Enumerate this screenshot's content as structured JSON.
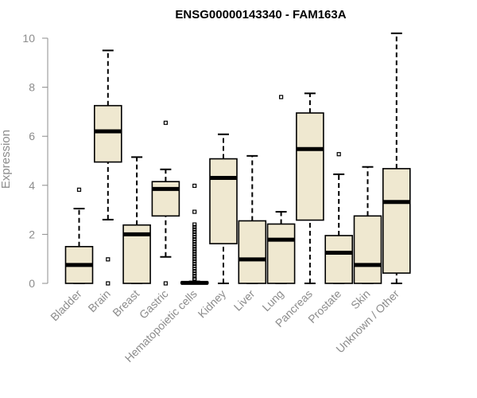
{
  "chart_data": {
    "type": "box",
    "title": "ENSG00000143340 - FAM163A",
    "ylabel": "Expression",
    "xlabel": "",
    "ylim": [
      0,
      10.5
    ],
    "yticks": [
      0,
      2,
      4,
      6,
      8,
      10
    ],
    "box_fill": "#efe8d0",
    "categories": [
      "Bladder",
      "Brain",
      "Breast",
      "Gastric",
      "Hematopoietic cells",
      "Kidney",
      "Liver",
      "Lung",
      "Pancreas",
      "Prostate",
      "Skin",
      "Unknown / Other"
    ],
    "boxes": [
      {
        "whisker_low": 0.0,
        "q1": 0.0,
        "median": 0.75,
        "q3": 1.5,
        "whisker_high": 3.05,
        "outliers": [
          3.82
        ]
      },
      {
        "whisker_low": 2.6,
        "q1": 4.95,
        "median": 6.2,
        "q3": 7.25,
        "whisker_high": 9.5,
        "outliers": [
          0.0,
          0.98
        ]
      },
      {
        "whisker_low": 0.0,
        "q1": 0.0,
        "median": 2.0,
        "q3": 2.38,
        "whisker_high": 5.15,
        "outliers": []
      },
      {
        "whisker_low": 1.08,
        "q1": 2.75,
        "median": 3.85,
        "q3": 4.15,
        "whisker_high": 4.65,
        "outliers": [
          6.55,
          0.0
        ]
      },
      {
        "whisker_low": 0.0,
        "q1": 0.0,
        "median": 0.02,
        "q3": 0.05,
        "whisker_high": 0.08,
        "outliers": [
          3.98,
          2.92,
          2.4,
          2.3,
          2.2,
          2.1,
          2.0,
          1.9,
          1.8,
          1.7,
          1.6,
          1.5,
          1.4,
          1.3,
          1.2,
          1.1,
          1.0,
          0.9,
          0.8,
          0.7,
          0.6,
          0.5,
          0.4,
          0.3,
          0.2,
          0.15
        ]
      },
      {
        "whisker_low": 0.0,
        "q1": 1.62,
        "median": 4.3,
        "q3": 5.08,
        "whisker_high": 6.08,
        "outliers": []
      },
      {
        "whisker_low": 0.0,
        "q1": 0.0,
        "median": 0.98,
        "q3": 2.55,
        "whisker_high": 5.2,
        "outliers": []
      },
      {
        "whisker_low": 0.0,
        "q1": 0.0,
        "median": 1.78,
        "q3": 2.42,
        "whisker_high": 2.92,
        "outliers": [
          7.6
        ]
      },
      {
        "whisker_low": 0.0,
        "q1": 2.58,
        "median": 5.48,
        "q3": 6.95,
        "whisker_high": 7.75,
        "outliers": []
      },
      {
        "whisker_low": 0.0,
        "q1": 0.0,
        "median": 1.25,
        "q3": 1.95,
        "whisker_high": 4.45,
        "outliers": [
          5.27
        ]
      },
      {
        "whisker_low": 0.0,
        "q1": 0.0,
        "median": 0.75,
        "q3": 2.75,
        "whisker_high": 4.75,
        "outliers": []
      },
      {
        "whisker_low": 0.0,
        "q1": 0.42,
        "median": 3.32,
        "q3": 4.68,
        "whisker_high": 10.2,
        "outliers": []
      }
    ]
  }
}
